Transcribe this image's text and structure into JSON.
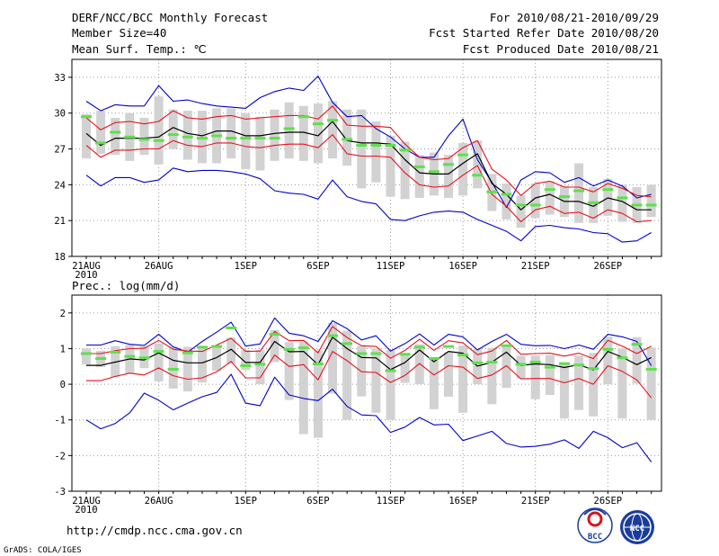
{
  "header": {
    "title": "DERF/NCC/BCC Monthly Forecast",
    "member_size": "Member Size=40",
    "variable": "Mean Surf. Temp.: ℃",
    "period": "For 2010/08/21-2010/09/29",
    "started": "Fcst Started Refer Date 2010/08/20",
    "produced": "Fcst Produced Date 2010/08/21"
  },
  "footer": {
    "url": "http://cmdp.ncc.cma.gov.cn",
    "credit": "GrADS: COLA/IGES",
    "logo_bcc": "BCC",
    "logo_ncc": "NCC"
  },
  "colors": {
    "mean": "#000000",
    "spread": "#e8101c",
    "extreme": "#0000cc",
    "member_box": "#d2d2d2",
    "member_mark": "#5ee04c",
    "grid": "#999999"
  },
  "chart_data": [
    {
      "id": "temp",
      "type": "line",
      "title": "Mean Surf. Temp.: ℃",
      "x": [
        "21AUG",
        "22",
        "23",
        "24",
        "25",
        "26AUG",
        "27",
        "28",
        "29",
        "30",
        "31",
        "1SEP",
        "2",
        "3",
        "4",
        "5",
        "6SEP",
        "7",
        "8",
        "9",
        "10",
        "11SEP",
        "12",
        "13",
        "14",
        "15",
        "16SEP",
        "17",
        "18",
        "19",
        "20",
        "21SEP",
        "22",
        "23",
        "24",
        "25",
        "26SEP",
        "27",
        "28",
        "29"
      ],
      "xticks": [
        "21AUG",
        "26AUG",
        "1SEP",
        "6SEP",
        "11SEP",
        "16SEP",
        "21SEP",
        "26SEP"
      ],
      "xsub": "2010",
      "ylim": [
        18,
        34.5
      ],
      "yticks": [
        18,
        21,
        24,
        27,
        30,
        33
      ],
      "series": [
        {
          "name": "ensemble mean",
          "values": [
            28.3,
            27.3,
            27.9,
            27.9,
            27.9,
            28.0,
            28.8,
            28.3,
            28.1,
            28.5,
            28.5,
            28.1,
            28.1,
            28.3,
            28.4,
            28.4,
            28.1,
            29.3,
            27.7,
            27.5,
            27.5,
            27.4,
            26.1,
            25.0,
            24.9,
            24.9,
            25.8,
            26.6,
            24.1,
            23.2,
            21.9,
            22.9,
            23.2,
            22.6,
            22.6,
            22.2,
            22.9,
            22.6,
            21.9,
            21.9
          ]
        },
        {
          "name": "mean + sd",
          "values": [
            29.6,
            28.6,
            29.2,
            29.3,
            29.1,
            29.3,
            30.2,
            29.6,
            29.5,
            29.7,
            29.8,
            29.5,
            29.6,
            29.7,
            29.8,
            29.8,
            29.5,
            30.6,
            29.0,
            28.9,
            28.9,
            28.8,
            27.4,
            26.3,
            26.1,
            26.2,
            27.1,
            27.7,
            25.3,
            24.4,
            23.1,
            24.1,
            24.3,
            23.8,
            23.8,
            23.4,
            24.1,
            23.7,
            23.1,
            23.0
          ]
        },
        {
          "name": "mean - sd",
          "values": [
            27.3,
            26.3,
            26.9,
            26.9,
            27.0,
            27.0,
            27.7,
            27.3,
            27.2,
            27.5,
            27.5,
            27.2,
            27.1,
            27.3,
            27.4,
            27.4,
            27.1,
            28.2,
            26.6,
            26.4,
            26.4,
            26.3,
            25.0,
            24.0,
            23.8,
            23.9,
            24.8,
            25.6,
            23.2,
            22.2,
            20.9,
            21.9,
            22.2,
            21.6,
            21.7,
            21.2,
            21.9,
            21.6,
            20.9,
            21.0
          ]
        },
        {
          "name": "max",
          "values": [
            31.0,
            30.2,
            30.7,
            30.6,
            30.6,
            32.3,
            31.0,
            31.1,
            30.8,
            30.6,
            30.5,
            30.4,
            31.3,
            31.8,
            32.1,
            31.9,
            33.1,
            30.9,
            29.7,
            29.8,
            28.7,
            28.0,
            27.0,
            26.3,
            26.3,
            28.1,
            29.5,
            26.1,
            24.2,
            22.1,
            24.4,
            25.1,
            25.0,
            24.2,
            24.6,
            23.9,
            24.4,
            23.9,
            22.9,
            23.2
          ]
        },
        {
          "name": "min",
          "values": [
            24.8,
            23.9,
            24.6,
            24.6,
            24.2,
            24.4,
            25.4,
            25.1,
            25.2,
            25.2,
            25.1,
            24.9,
            24.5,
            23.5,
            23.3,
            23.2,
            22.8,
            24.4,
            23.0,
            22.6,
            22.4,
            21.1,
            21.0,
            21.4,
            21.7,
            21.8,
            21.7,
            21.1,
            20.6,
            20.1,
            19.3,
            20.5,
            20.6,
            20.4,
            20.3,
            20.0,
            19.9,
            19.2,
            19.3,
            20.0
          ]
        },
        {
          "name": "member box top",
          "values": [
            29.9,
            30.2,
            29.6,
            30.0,
            29.6,
            31.4,
            30.3,
            30.2,
            30.2,
            30.4,
            30.4,
            30.0,
            29.7,
            30.3,
            30.9,
            30.6,
            30.8,
            31.0,
            30.3,
            30.3,
            29.3,
            28.1,
            27.6,
            26.5,
            26.7,
            26.5,
            27.5,
            27.7,
            24.9,
            24.1,
            23.1,
            24.1,
            24.3,
            23.9,
            25.8,
            23.8,
            24.5,
            24.0,
            23.8,
            24.0
          ]
        },
        {
          "name": "member box bottom",
          "values": [
            26.2,
            26.6,
            26.5,
            26.0,
            26.5,
            25.7,
            27.0,
            26.1,
            25.8,
            25.8,
            26.2,
            25.3,
            25.2,
            26.0,
            26.2,
            26.0,
            25.8,
            26.2,
            25.6,
            23.7,
            24.2,
            23.0,
            22.8,
            22.9,
            23.1,
            22.9,
            23.1,
            23.7,
            21.8,
            21.1,
            20.4,
            21.2,
            21.5,
            21.3,
            20.8,
            20.8,
            21.4,
            20.9,
            20.8,
            21.3
          ]
        },
        {
          "name": "member mark",
          "values": [
            29.7,
            27.5,
            28.4,
            28.0,
            27.8,
            27.7,
            28.2,
            28.0,
            27.9,
            28.1,
            27.9,
            27.9,
            27.9,
            27.9,
            28.7,
            29.7,
            29.1,
            29.4,
            27.8,
            27.3,
            27.3,
            27.3,
            26.9,
            25.5,
            25.1,
            25.7,
            26.5,
            24.8,
            23.4,
            23.2,
            22.3,
            22.3,
            23.6,
            23.0,
            23.5,
            22.5,
            23.6,
            22.9,
            22.3,
            22.3
          ]
        }
      ]
    },
    {
      "id": "prec",
      "type": "line",
      "title": "Prec.: log(mm/d)",
      "x": [
        "21AUG",
        "22",
        "23",
        "24",
        "25",
        "26AUG",
        "27",
        "28",
        "29",
        "30",
        "31",
        "1SEP",
        "2",
        "3",
        "4",
        "5",
        "6SEP",
        "7",
        "8",
        "9",
        "10",
        "11SEP",
        "12",
        "13",
        "14",
        "15",
        "16SEP",
        "17",
        "18",
        "19",
        "20",
        "21SEP",
        "22",
        "23",
        "24",
        "25",
        "26SEP",
        "27",
        "28",
        "29"
      ],
      "xticks": [
        "21AUG",
        "26AUG",
        "1SEP",
        "6SEP",
        "11SEP",
        "16SEP",
        "21SEP",
        "26SEP"
      ],
      "xsub": "2010",
      "ylim": [
        -3,
        2.5
      ],
      "yticks": [
        -3,
        -2,
        -1,
        0,
        1,
        2
      ],
      "series": [
        {
          "name": "ensemble mean",
          "values": [
            0.53,
            0.53,
            0.62,
            0.71,
            0.68,
            0.88,
            0.67,
            0.6,
            0.6,
            0.75,
            0.98,
            0.61,
            0.61,
            1.2,
            0.91,
            0.92,
            0.55,
            1.32,
            1.0,
            0.75,
            0.74,
            0.41,
            0.61,
            0.96,
            0.63,
            0.92,
            0.87,
            0.51,
            0.62,
            0.9,
            0.53,
            0.57,
            0.55,
            0.47,
            0.55,
            0.4,
            0.92,
            0.76,
            0.55,
            0.75
          ]
        },
        {
          "name": "mean + sd",
          "values": [
            0.86,
            0.86,
            0.94,
            1.0,
            1.01,
            1.23,
            0.98,
            0.93,
            0.92,
            1.1,
            1.29,
            0.92,
            0.93,
            1.48,
            1.22,
            1.23,
            0.88,
            1.62,
            1.31,
            1.08,
            1.06,
            0.73,
            0.95,
            1.26,
            0.95,
            1.22,
            1.16,
            0.83,
            0.93,
            1.23,
            0.84,
            0.86,
            0.87,
            0.79,
            0.87,
            0.72,
            1.23,
            1.07,
            0.86,
            1.07
          ]
        },
        {
          "name": "mean - sd",
          "values": [
            0.1,
            0.1,
            0.22,
            0.31,
            0.26,
            0.46,
            0.24,
            0.14,
            0.18,
            0.35,
            0.64,
            0.18,
            0.18,
            0.82,
            0.5,
            0.55,
            0.12,
            0.92,
            0.66,
            0.35,
            0.33,
            0.05,
            0.25,
            0.58,
            0.26,
            0.52,
            0.48,
            0.16,
            0.26,
            0.52,
            0.15,
            0.16,
            0.16,
            0.04,
            0.16,
            0.0,
            0.52,
            0.36,
            0.12,
            -0.38
          ]
        },
        {
          "name": "max",
          "values": [
            1.1,
            1.1,
            1.22,
            1.12,
            1.09,
            1.4,
            1.05,
            0.9,
            1.2,
            1.46,
            1.74,
            1.07,
            1.13,
            1.86,
            1.43,
            1.36,
            1.2,
            1.78,
            1.56,
            1.24,
            1.36,
            0.93,
            1.14,
            1.41,
            1.1,
            1.4,
            1.33,
            0.96,
            1.2,
            1.4,
            1.12,
            1.08,
            1.09,
            1.0,
            1.1,
            0.98,
            1.4,
            1.33,
            1.2,
            0.52
          ]
        },
        {
          "name": "min",
          "values": [
            -1.0,
            -1.25,
            -1.1,
            -0.8,
            -0.25,
            -0.45,
            -0.72,
            -0.53,
            -0.35,
            -0.23,
            0.28,
            -0.53,
            -0.6,
            0.2,
            -0.3,
            -0.4,
            -0.46,
            -0.14,
            -0.62,
            -0.86,
            -0.88,
            -1.35,
            -1.2,
            -0.93,
            -1.14,
            -1.12,
            -1.58,
            -1.45,
            -1.32,
            -1.66,
            -1.76,
            -1.74,
            -1.68,
            -1.56,
            -1.8,
            -1.32,
            -1.5,
            -1.78,
            -1.64,
            -2.18
          ]
        },
        {
          "name": "member box top",
          "values": [
            1.0,
            0.94,
            1.07,
            1.1,
            1.06,
            1.14,
            1.06,
            1.05,
            1.07,
            1.06,
            1.31,
            0.96,
            0.96,
            1.52,
            1.18,
            1.2,
            0.95,
            1.72,
            1.5,
            1.08,
            1.0,
            0.96,
            0.88,
            1.12,
            0.76,
            0.9,
            1.08,
            0.98,
            1.02,
            1.04,
            0.8,
            0.8,
            0.82,
            0.56,
            0.8,
            0.88,
            1.34,
            1.0,
            1.32,
            1.03
          ]
        },
        {
          "name": "member box bottom",
          "values": [
            0.55,
            0.48,
            0.2,
            0.3,
            0.45,
            0.08,
            -0.12,
            -0.2,
            0.05,
            0.38,
            0.58,
            0.4,
            0.0,
            0.62,
            -0.44,
            -1.4,
            -1.5,
            -0.26,
            -1.0,
            -0.34,
            -0.8,
            -1.0,
            0.04,
            0.0,
            -0.7,
            -0.35,
            -0.8,
            0.0,
            -0.56,
            -0.1,
            0.16,
            -0.42,
            -0.3,
            -0.96,
            -0.72,
            -0.9,
            0.0,
            -0.96,
            0.02,
            -1.0
          ]
        },
        {
          "name": "member mark",
          "values": [
            0.86,
            0.72,
            0.9,
            0.78,
            0.74,
            0.92,
            0.42,
            0.88,
            1.04,
            1.06,
            1.58,
            0.52,
            0.56,
            1.4,
            0.98,
            1.02,
            0.57,
            1.36,
            1.14,
            0.86,
            0.86,
            0.38,
            0.84,
            1.04,
            0.72,
            1.06,
            0.82,
            0.6,
            0.62,
            1.08,
            0.56,
            0.62,
            0.48,
            0.58,
            0.54,
            0.44,
            0.98,
            0.74,
            1.12,
            0.42
          ]
        }
      ]
    }
  ]
}
